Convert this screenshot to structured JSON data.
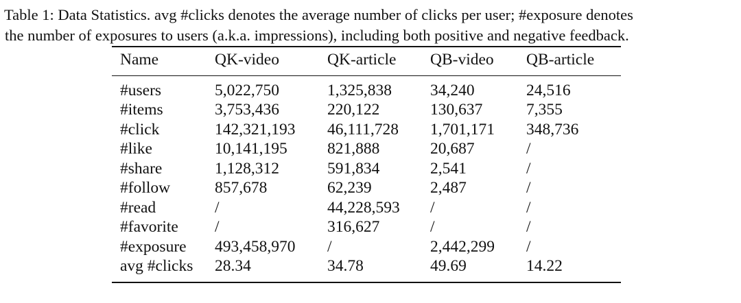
{
  "caption": {
    "line1": "Table 1: Data Statistics. avg #clicks denotes the average number of clicks per user; #exposure denotes",
    "line2": "the number of exposures to users (a.k.a. impressions), including both positive and negative feedback."
  },
  "table": {
    "headers": [
      "Name",
      "QK-video",
      "QK-article",
      "QB-video",
      "QB-article"
    ],
    "rows": [
      [
        "#users",
        "5,022,750",
        "1,325,838",
        "34,240",
        "24,516"
      ],
      [
        "#items",
        "3,753,436",
        "220,122",
        "130,637",
        "7,355"
      ],
      [
        "#click",
        "142,321,193",
        "46,111,728",
        "1,701,171",
        "348,736"
      ],
      [
        "#like",
        "10,141,195",
        "821,888",
        "20,687",
        "/"
      ],
      [
        "#share",
        "1,128,312",
        "591,834",
        "2,541",
        "/"
      ],
      [
        "#follow",
        "857,678",
        "62,239",
        "2,487",
        "/"
      ],
      [
        "#read",
        "/",
        "44,228,593",
        "/",
        "/"
      ],
      [
        "#favorite",
        "/",
        "316,627",
        "/",
        "/"
      ],
      [
        "#exposure",
        "493,458,970",
        "/",
        "2,442,299",
        "/"
      ],
      [
        "avg #clicks",
        "28.34",
        "34.78",
        "49.69",
        "14.22"
      ]
    ]
  }
}
